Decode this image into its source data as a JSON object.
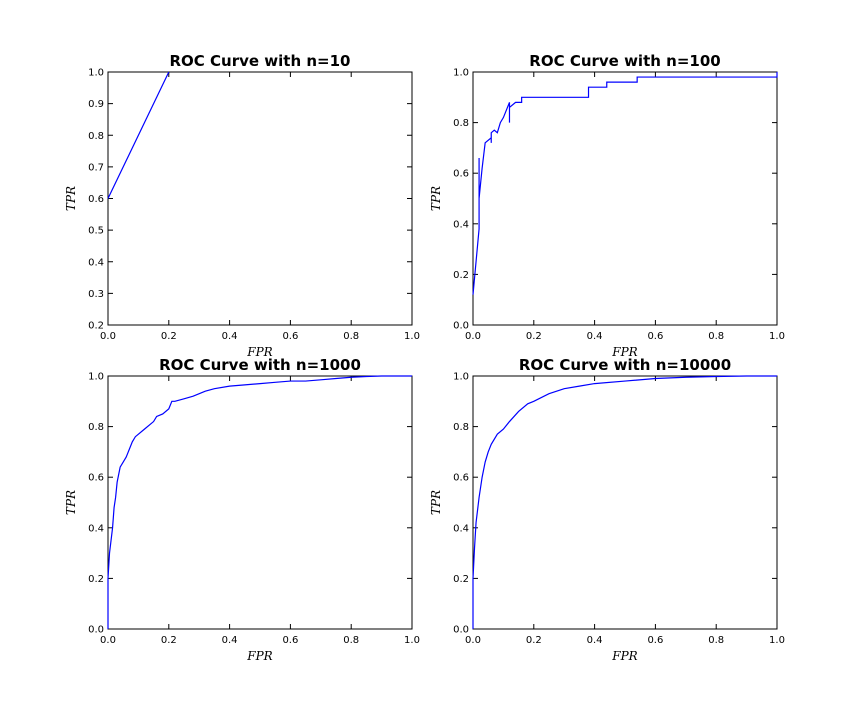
{
  "chart_data": [
    {
      "type": "line",
      "title": "ROC Curve with n=10",
      "xlabel": "FPR",
      "ylabel": "TPR",
      "xlim": [
        0,
        1
      ],
      "ylim": [
        0.2,
        1.0
      ],
      "xticks": [
        "0.0",
        "0.2",
        "0.4",
        "0.6",
        "0.8",
        "1.0"
      ],
      "yticks": [
        "0.2",
        "0.3",
        "0.4",
        "0.5",
        "0.6",
        "0.7",
        "0.8",
        "0.9",
        "1.0"
      ],
      "series": [
        {
          "color": "#0000ff",
          "x": [
            0.0,
            0.2
          ],
          "y": [
            0.6,
            1.0
          ]
        }
      ]
    },
    {
      "type": "line",
      "title": "ROC Curve with n=100",
      "xlabel": "FPR",
      "ylabel": "TPR",
      "xlim": [
        0,
        1
      ],
      "ylim": [
        0,
        1
      ],
      "xticks": [
        "0.0",
        "0.2",
        "0.4",
        "0.6",
        "0.8",
        "1.0"
      ],
      "yticks": [
        "0.0",
        "0.2",
        "0.4",
        "0.6",
        "0.8",
        "1.0"
      ],
      "series": [
        {
          "color": "#0000ff",
          "x": [
            0.0,
            0.02,
            0.02,
            0.02,
            0.02,
            0.03,
            0.04,
            0.06,
            0.06,
            0.06,
            0.07,
            0.08,
            0.09,
            0.1,
            0.12,
            0.12,
            0.12,
            0.14,
            0.16,
            0.16,
            0.38,
            0.38,
            0.4,
            0.44,
            0.44,
            0.54,
            0.54,
            1.0,
            1.0
          ],
          "y": [
            0.12,
            0.38,
            0.66,
            0.4,
            0.5,
            0.62,
            0.72,
            0.74,
            0.72,
            0.76,
            0.77,
            0.76,
            0.8,
            0.82,
            0.88,
            0.8,
            0.86,
            0.88,
            0.88,
            0.9,
            0.9,
            0.94,
            0.94,
            0.94,
            0.96,
            0.96,
            0.98,
            0.98,
            1.0
          ]
        }
      ]
    },
    {
      "type": "line",
      "title": "ROC Curve with n=1000",
      "xlabel": "FPR",
      "ylabel": "TPR",
      "xlim": [
        0,
        1
      ],
      "ylim": [
        0,
        1
      ],
      "xticks": [
        "0.0",
        "0.2",
        "0.4",
        "0.6",
        "0.8",
        "1.0"
      ],
      "yticks": [
        "0.0",
        "0.2",
        "0.4",
        "0.6",
        "0.8",
        "1.0"
      ],
      "series": [
        {
          "color": "#0000ff",
          "x": [
            0.0,
            0.0,
            0.005,
            0.01,
            0.015,
            0.02,
            0.025,
            0.03,
            0.04,
            0.05,
            0.06,
            0.07,
            0.08,
            0.09,
            0.1,
            0.12,
            0.14,
            0.15,
            0.16,
            0.18,
            0.2,
            0.21,
            0.22,
            0.25,
            0.28,
            0.3,
            0.32,
            0.35,
            0.4,
            0.45,
            0.5,
            0.55,
            0.6,
            0.65,
            0.7,
            0.75,
            0.8,
            0.85,
            0.9,
            0.95,
            1.0
          ],
          "y": [
            0.0,
            0.2,
            0.3,
            0.35,
            0.4,
            0.48,
            0.52,
            0.58,
            0.64,
            0.66,
            0.68,
            0.71,
            0.74,
            0.76,
            0.77,
            0.79,
            0.81,
            0.82,
            0.84,
            0.85,
            0.87,
            0.9,
            0.9,
            0.91,
            0.92,
            0.93,
            0.94,
            0.95,
            0.96,
            0.965,
            0.97,
            0.975,
            0.98,
            0.98,
            0.985,
            0.99,
            0.995,
            0.998,
            1.0,
            1.0,
            1.0
          ]
        }
      ]
    },
    {
      "type": "line",
      "title": "ROC Curve with n=10000",
      "xlabel": "FPR",
      "ylabel": "TPR",
      "xlim": [
        0,
        1
      ],
      "ylim": [
        0,
        1
      ],
      "xticks": [
        "0.0",
        "0.2",
        "0.4",
        "0.6",
        "0.8",
        "1.0"
      ],
      "yticks": [
        "0.0",
        "0.2",
        "0.4",
        "0.6",
        "0.8",
        "1.0"
      ],
      "series": [
        {
          "color": "#0000ff",
          "x": [
            0.0,
            0.0,
            0.005,
            0.01,
            0.02,
            0.03,
            0.04,
            0.05,
            0.06,
            0.08,
            0.1,
            0.12,
            0.15,
            0.18,
            0.2,
            0.25,
            0.3,
            0.35,
            0.4,
            0.5,
            0.6,
            0.7,
            0.8,
            0.9,
            1.0
          ],
          "y": [
            0.0,
            0.2,
            0.32,
            0.42,
            0.52,
            0.6,
            0.66,
            0.7,
            0.73,
            0.77,
            0.79,
            0.82,
            0.86,
            0.89,
            0.9,
            0.93,
            0.95,
            0.96,
            0.97,
            0.98,
            0.99,
            0.995,
            0.998,
            1.0,
            1.0
          ]
        }
      ]
    }
  ]
}
